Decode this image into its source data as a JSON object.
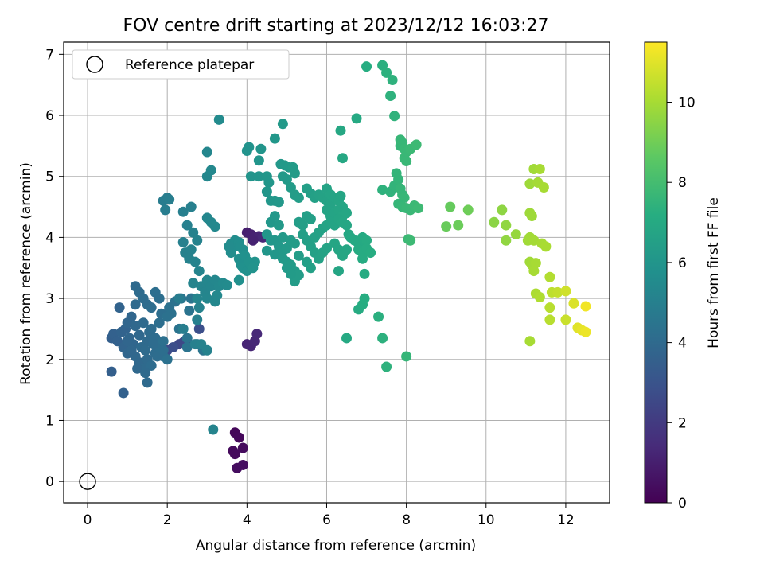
{
  "chart_data": {
    "type": "scatter",
    "title": "FOV centre drift starting at 2023/12/12 16:03:27",
    "xlabel": "Angular distance from reference (arcmin)",
    "ylabel": "Rotation from reference (arcmin)",
    "xlim": [
      -0.6,
      13.1
    ],
    "ylim": [
      -0.35,
      7.2
    ],
    "xticks": [
      0,
      2,
      4,
      6,
      8,
      10,
      12
    ],
    "yticks": [
      0,
      1,
      2,
      3,
      4,
      5,
      6,
      7
    ],
    "grid": true,
    "legend": {
      "position": "top-left",
      "entries": [
        "Reference platepar"
      ]
    },
    "reference_point": {
      "x": 0,
      "y": 0,
      "marker": "open-circle"
    },
    "colorbar": {
      "label": "Hours from first FF file",
      "range": [
        0,
        11.5
      ],
      "ticks": [
        0,
        2,
        4,
        6,
        8,
        10
      ],
      "colormap": "viridis"
    },
    "points": [
      [
        3.7,
        0.8,
        0.2
      ],
      [
        3.8,
        0.72,
        0.25
      ],
      [
        3.65,
        0.5,
        0.3
      ],
      [
        3.9,
        0.55,
        0.35
      ],
      [
        3.7,
        0.45,
        0.3
      ],
      [
        3.75,
        0.22,
        0.4
      ],
      [
        3.9,
        0.27,
        0.45
      ],
      [
        4.0,
        4.08,
        1.0
      ],
      [
        4.1,
        4.05,
        1.05
      ],
      [
        4.2,
        4.0,
        1.1
      ],
      [
        4.3,
        4.02,
        1.2
      ],
      [
        4.4,
        4.0,
        1.3
      ],
      [
        4.15,
        3.95,
        1.1
      ],
      [
        4.0,
        2.25,
        1.2
      ],
      [
        4.1,
        2.22,
        1.25
      ],
      [
        4.2,
        2.3,
        1.3
      ],
      [
        4.25,
        2.42,
        1.35
      ],
      [
        2.3,
        2.25,
        2.5
      ],
      [
        2.4,
        2.28,
        2.55
      ],
      [
        2.5,
        2.3,
        2.6
      ],
      [
        2.8,
        2.5,
        2.8
      ],
      [
        2.0,
        2.15,
        2.7
      ],
      [
        2.15,
        2.2,
        2.75
      ],
      [
        0.6,
        2.35,
        3.5
      ],
      [
        0.65,
        2.42,
        3.6
      ],
      [
        0.75,
        2.3,
        3.6
      ],
      [
        0.85,
        2.45,
        3.7
      ],
      [
        0.95,
        2.5,
        3.7
      ],
      [
        1.05,
        2.35,
        3.8
      ],
      [
        1.15,
        2.25,
        3.8
      ],
      [
        0.9,
        2.2,
        3.75
      ],
      [
        1.0,
        2.1,
        3.8
      ],
      [
        1.2,
        2.05,
        3.9
      ],
      [
        1.3,
        1.95,
        3.9
      ],
      [
        1.4,
        1.85,
        4.0
      ],
      [
        1.5,
        2.0,
        4.0
      ],
      [
        1.6,
        1.9,
        4.1
      ],
      [
        1.7,
        2.1,
        4.1
      ],
      [
        1.8,
        2.2,
        4.2
      ],
      [
        1.9,
        2.05,
        4.2
      ],
      [
        2.0,
        2.0,
        4.3
      ],
      [
        0.8,
        2.85,
        3.7
      ],
      [
        1.0,
        2.6,
        3.8
      ],
      [
        1.1,
        2.7,
        3.8
      ],
      [
        1.2,
        2.55,
        3.9
      ],
      [
        1.3,
        2.4,
        3.9
      ],
      [
        1.4,
        2.6,
        4.0
      ],
      [
        1.5,
        2.3,
        4.0
      ],
      [
        1.55,
        2.45,
        4.05
      ],
      [
        1.6,
        2.5,
        4.1
      ],
      [
        1.7,
        2.35,
        4.1
      ],
      [
        1.8,
        2.6,
        4.2
      ],
      [
        1.85,
        2.75,
        4.2
      ],
      [
        1.9,
        2.3,
        4.25
      ],
      [
        1.2,
        3.2,
        4.0
      ],
      [
        1.3,
        3.1,
        4.05
      ],
      [
        1.4,
        3.0,
        4.1
      ],
      [
        1.5,
        2.9,
        4.1
      ],
      [
        1.6,
        2.85,
        4.15
      ],
      [
        1.7,
        3.1,
        4.2
      ],
      [
        1.8,
        3.0,
        4.2
      ],
      [
        1.2,
        2.9,
        4.0
      ],
      [
        1.0,
        2.3,
        3.8
      ],
      [
        1.1,
        2.15,
        3.85
      ],
      [
        1.25,
        1.85,
        3.9
      ],
      [
        1.45,
        1.78,
        4.0
      ],
      [
        0.9,
        1.45,
        3.6
      ],
      [
        0.6,
        1.8,
        3.5
      ],
      [
        1.5,
        1.62,
        4.0
      ],
      [
        1.35,
        2.2,
        4.0
      ],
      [
        1.45,
        2.15,
        4.05
      ],
      [
        1.65,
        2.25,
        4.1
      ],
      [
        1.75,
        2.05,
        4.15
      ],
      [
        1.9,
        2.15,
        4.2
      ],
      [
        2.05,
        2.85,
        4.3
      ],
      [
        2.2,
        2.95,
        4.35
      ],
      [
        2.35,
        3.0,
        4.4
      ],
      [
        2.1,
        2.75,
        4.3
      ],
      [
        2.0,
        2.7,
        4.3
      ],
      [
        2.55,
        2.8,
        4.4
      ],
      [
        2.6,
        3.0,
        4.45
      ],
      [
        2.3,
        2.5,
        4.4
      ],
      [
        2.5,
        2.35,
        4.45
      ],
      [
        2.75,
        2.25,
        4.5
      ],
      [
        2.9,
        2.15,
        4.5
      ],
      [
        2.5,
        2.2,
        4.4
      ],
      [
        1.9,
        4.6,
        4.8
      ],
      [
        2.0,
        4.65,
        4.85
      ],
      [
        2.05,
        4.62,
        4.9
      ],
      [
        1.95,
        4.45,
        4.85
      ],
      [
        2.4,
        4.42,
        4.95
      ],
      [
        2.6,
        4.5,
        5.0
      ],
      [
        2.5,
        4.2,
        5.0
      ],
      [
        2.65,
        4.08,
        5.05
      ],
      [
        2.75,
        3.95,
        5.1
      ],
      [
        2.4,
        3.92,
        5.0
      ],
      [
        2.45,
        3.75,
        5.05
      ],
      [
        2.55,
        3.65,
        5.1
      ],
      [
        2.6,
        3.8,
        5.1
      ],
      [
        2.7,
        3.6,
        5.15
      ],
      [
        2.8,
        3.45,
        5.2
      ],
      [
        2.65,
        3.25,
        5.2
      ],
      [
        2.85,
        3.2,
        5.25
      ],
      [
        2.95,
        3.1,
        5.25
      ],
      [
        3.0,
        3.3,
        5.3
      ],
      [
        3.1,
        3.2,
        5.3
      ],
      [
        3.2,
        3.3,
        5.35
      ],
      [
        3.3,
        3.2,
        5.4
      ],
      [
        2.75,
        3.0,
        5.25
      ],
      [
        3.0,
        3.0,
        5.3
      ],
      [
        3.2,
        2.95,
        5.35
      ],
      [
        3.25,
        3.05,
        5.4
      ],
      [
        3.4,
        3.25,
        5.45
      ],
      [
        3.5,
        3.22,
        5.5
      ],
      [
        3.0,
        4.32,
        5.3
      ],
      [
        3.1,
        4.25,
        5.35
      ],
      [
        3.2,
        4.18,
        5.4
      ],
      [
        3.0,
        5.4,
        5.3
      ],
      [
        3.0,
        5.0,
        5.35
      ],
      [
        3.1,
        5.1,
        5.4
      ],
      [
        3.3,
        5.93,
        5.5
      ],
      [
        2.3,
        3.0,
        4.8
      ],
      [
        2.4,
        2.5,
        4.9
      ],
      [
        2.7,
        2.25,
        5.0
      ],
      [
        2.85,
        2.25,
        5.1
      ],
      [
        3.0,
        2.15,
        5.1
      ],
      [
        3.15,
        0.85,
        5.2
      ],
      [
        2.75,
        2.65,
        5.0
      ],
      [
        2.8,
        2.85,
        5.1
      ],
      [
        3.6,
        3.9,
        5.55
      ],
      [
        3.7,
        3.95,
        5.6
      ],
      [
        3.8,
        3.92,
        5.65
      ],
      [
        3.9,
        3.8,
        5.7
      ],
      [
        3.6,
        3.75,
        5.6
      ],
      [
        3.8,
        3.65,
        5.7
      ],
      [
        3.85,
        3.55,
        5.75
      ],
      [
        3.9,
        3.5,
        5.8
      ],
      [
        4.0,
        3.45,
        5.8
      ],
      [
        4.1,
        3.55,
        5.85
      ],
      [
        4.2,
        3.6,
        5.9
      ],
      [
        3.7,
        3.85,
        5.65
      ],
      [
        3.95,
        3.7,
        5.8
      ],
      [
        4.05,
        3.6,
        5.85
      ],
      [
        4.15,
        3.5,
        5.9
      ],
      [
        3.6,
        3.85,
        5.6
      ],
      [
        3.55,
        3.85,
        5.55
      ],
      [
        3.8,
        3.3,
        5.75
      ],
      [
        4.0,
        5.42,
        5.9
      ],
      [
        4.05,
        5.48,
        5.9
      ],
      [
        4.1,
        5.0,
        5.95
      ],
      [
        4.35,
        5.45,
        6.0
      ],
      [
        4.3,
        5.26,
        6.0
      ],
      [
        4.3,
        5.0,
        6.0
      ],
      [
        4.5,
        4.75,
        6.05
      ],
      [
        4.6,
        4.6,
        6.1
      ],
      [
        4.7,
        4.6,
        6.1
      ],
      [
        4.8,
        4.58,
        6.15
      ],
      [
        4.7,
        5.62,
        6.1
      ],
      [
        4.9,
        5.86,
        6.2
      ],
      [
        4.85,
        5.2,
        6.15
      ],
      [
        4.95,
        5.18,
        6.2
      ],
      [
        5.05,
        5.15,
        6.25
      ],
      [
        5.15,
        5.15,
        6.3
      ],
      [
        5.2,
        5.05,
        6.3
      ],
      [
        5.0,
        4.95,
        6.25
      ],
      [
        4.9,
        5.0,
        6.2
      ],
      [
        5.1,
        4.82,
        6.3
      ],
      [
        5.2,
        4.7,
        6.35
      ],
      [
        5.3,
        4.65,
        6.4
      ],
      [
        4.5,
        4.05,
        6.05
      ],
      [
        4.6,
        3.95,
        6.1
      ],
      [
        4.7,
        3.95,
        6.1
      ],
      [
        4.8,
        3.85,
        6.15
      ],
      [
        4.9,
        3.78,
        6.2
      ],
      [
        4.5,
        3.78,
        6.05
      ],
      [
        4.7,
        3.72,
        6.1
      ],
      [
        4.9,
        3.65,
        6.2
      ],
      [
        5.0,
        3.6,
        6.25
      ],
      [
        5.1,
        3.55,
        6.3
      ],
      [
        5.2,
        3.45,
        6.3
      ],
      [
        5.3,
        3.38,
        6.35
      ],
      [
        5.2,
        3.28,
        6.35
      ],
      [
        5.0,
        3.5,
        6.25
      ],
      [
        4.6,
        4.25,
        6.1
      ],
      [
        4.7,
        4.35,
        6.15
      ],
      [
        4.8,
        4.2,
        6.2
      ],
      [
        4.9,
        4.0,
        6.2
      ],
      [
        5.0,
        3.82,
        6.25
      ],
      [
        5.1,
        3.95,
        6.3
      ],
      [
        5.2,
        3.9,
        6.35
      ],
      [
        5.3,
        4.25,
        6.4
      ],
      [
        5.4,
        4.2,
        6.45
      ],
      [
        5.5,
        4.35,
        6.5
      ],
      [
        5.6,
        4.3,
        6.5
      ],
      [
        5.4,
        4.05,
        6.45
      ],
      [
        5.5,
        3.95,
        6.5
      ],
      [
        5.6,
        3.85,
        6.55
      ],
      [
        5.7,
        3.75,
        6.55
      ],
      [
        5.5,
        3.6,
        6.5
      ],
      [
        5.6,
        3.5,
        6.55
      ],
      [
        5.8,
        3.65,
        6.6
      ],
      [
        5.9,
        3.75,
        6.65
      ],
      [
        6.0,
        3.82,
        6.7
      ],
      [
        5.7,
        4.0,
        6.6
      ],
      [
        5.8,
        4.08,
        6.6
      ],
      [
        5.9,
        4.15,
        6.65
      ],
      [
        6.0,
        4.2,
        6.7
      ],
      [
        5.3,
        3.7,
        6.4
      ],
      [
        5.1,
        3.4,
        6.3
      ],
      [
        4.5,
        5.0,
        6.05
      ],
      [
        4.55,
        4.9,
        6.05
      ],
      [
        5.5,
        4.8,
        6.5
      ],
      [
        5.6,
        4.72,
        6.5
      ],
      [
        5.7,
        4.65,
        6.55
      ],
      [
        5.8,
        4.7,
        6.6
      ],
      [
        5.9,
        4.65,
        6.65
      ],
      [
        6.0,
        4.6,
        6.65
      ],
      [
        6.1,
        4.55,
        6.7
      ],
      [
        6.0,
        4.8,
        6.7
      ],
      [
        6.1,
        4.7,
        6.75
      ],
      [
        6.2,
        4.65,
        6.75
      ],
      [
        6.3,
        4.6,
        6.8
      ],
      [
        6.35,
        4.68,
        6.8
      ],
      [
        6.4,
        4.5,
        6.85
      ],
      [
        6.0,
        4.45,
        6.7
      ],
      [
        6.1,
        4.35,
        6.75
      ],
      [
        6.2,
        4.4,
        6.75
      ],
      [
        6.3,
        4.45,
        6.8
      ],
      [
        6.4,
        4.35,
        6.85
      ],
      [
        6.5,
        4.4,
        6.85
      ],
      [
        6.1,
        4.25,
        6.75
      ],
      [
        6.2,
        4.2,
        6.75
      ],
      [
        6.3,
        4.3,
        6.8
      ],
      [
        6.4,
        4.25,
        6.85
      ],
      [
        6.5,
        4.2,
        6.85
      ],
      [
        6.2,
        3.9,
        6.8
      ],
      [
        6.3,
        3.8,
        6.8
      ],
      [
        6.4,
        3.7,
        6.85
      ],
      [
        6.5,
        3.8,
        6.85
      ],
      [
        6.3,
        3.45,
        6.8
      ],
      [
        6.55,
        4.05,
        6.9
      ],
      [
        6.6,
        4.0,
        6.95
      ],
      [
        6.7,
        3.95,
        7.0
      ],
      [
        6.8,
        3.9,
        7.0
      ],
      [
        6.9,
        4.0,
        7.05
      ],
      [
        7.0,
        3.95,
        7.1
      ],
      [
        6.8,
        3.8,
        7.05
      ],
      [
        6.9,
        3.75,
        7.1
      ],
      [
        7.0,
        3.82,
        7.1
      ],
      [
        7.1,
        3.75,
        7.15
      ],
      [
        6.9,
        3.65,
        7.1
      ],
      [
        6.95,
        3.4,
        7.1
      ],
      [
        6.8,
        2.82,
        7.1
      ],
      [
        6.9,
        2.9,
        7.15
      ],
      [
        6.95,
        3.0,
        7.2
      ],
      [
        6.5,
        2.35,
        7.0
      ],
      [
        6.4,
        5.3,
        6.9
      ],
      [
        6.35,
        5.75,
        6.9
      ],
      [
        6.75,
        5.95,
        7.0
      ],
      [
        7.0,
        6.8,
        7.2
      ],
      [
        7.4,
        6.82,
        7.3
      ],
      [
        7.5,
        6.7,
        7.35
      ],
      [
        7.65,
        6.58,
        7.4
      ],
      [
        7.6,
        6.32,
        7.4
      ],
      [
        7.7,
        5.99,
        7.45
      ],
      [
        7.3,
        2.7,
        7.3
      ],
      [
        7.4,
        2.35,
        7.35
      ],
      [
        7.5,
        1.88,
        7.4
      ],
      [
        8.0,
        2.05,
        7.6
      ],
      [
        7.4,
        4.78,
        7.4
      ],
      [
        7.6,
        4.75,
        7.45
      ],
      [
        7.7,
        4.85,
        7.5
      ],
      [
        7.75,
        5.05,
        7.55
      ],
      [
        7.8,
        4.95,
        7.55
      ],
      [
        7.85,
        4.8,
        7.6
      ],
      [
        7.9,
        4.7,
        7.6
      ],
      [
        7.95,
        4.65,
        7.65
      ],
      [
        7.8,
        4.55,
        7.6
      ],
      [
        7.9,
        4.5,
        7.65
      ],
      [
        8.0,
        4.48,
        7.7
      ],
      [
        8.1,
        4.45,
        7.7
      ],
      [
        8.2,
        4.52,
        7.75
      ],
      [
        8.3,
        4.48,
        7.8
      ],
      [
        7.85,
        5.5,
        7.6
      ],
      [
        7.9,
        5.55,
        7.65
      ],
      [
        7.95,
        5.45,
        7.7
      ],
      [
        8.0,
        5.4,
        7.7
      ],
      [
        8.1,
        5.45,
        7.75
      ],
      [
        8.25,
        5.52,
        7.8
      ],
      [
        7.95,
        5.3,
        7.7
      ],
      [
        8.0,
        5.25,
        7.7
      ],
      [
        7.85,
        5.6,
        7.65
      ],
      [
        8.05,
        3.97,
        7.75
      ],
      [
        8.1,
        3.95,
        7.8
      ],
      [
        9.1,
        4.5,
        8.8
      ],
      [
        9.0,
        4.18,
        8.85
      ],
      [
        9.3,
        4.2,
        8.9
      ],
      [
        9.55,
        4.45,
        8.95
      ],
      [
        10.2,
        4.25,
        9.5
      ],
      [
        10.4,
        4.45,
        9.55
      ],
      [
        10.5,
        3.95,
        9.6
      ],
      [
        10.5,
        4.2,
        9.6
      ],
      [
        10.75,
        4.05,
        9.7
      ],
      [
        11.1,
        4.0,
        9.9
      ],
      [
        11.05,
        3.95,
        9.9
      ],
      [
        11.2,
        3.95,
        9.95
      ],
      [
        11.1,
        4.4,
        9.85
      ],
      [
        11.15,
        4.35,
        9.85
      ],
      [
        11.1,
        4.88,
        9.85
      ],
      [
        11.2,
        5.12,
        9.9
      ],
      [
        11.3,
        4.9,
        9.95
      ],
      [
        11.35,
        5.12,
        10.0
      ],
      [
        11.45,
        4.82,
        10.0
      ],
      [
        11.4,
        3.9,
        10.0
      ],
      [
        11.5,
        3.85,
        10.05
      ],
      [
        11.1,
        3.6,
        9.9
      ],
      [
        11.15,
        3.55,
        9.95
      ],
      [
        11.25,
        3.58,
        10.0
      ],
      [
        11.2,
        3.45,
        10.0
      ],
      [
        11.1,
        2.3,
        10.0
      ],
      [
        11.25,
        3.08,
        10.1
      ],
      [
        11.35,
        3.02,
        10.15
      ],
      [
        11.6,
        3.35,
        10.2
      ],
      [
        11.6,
        2.85,
        10.3
      ],
      [
        11.6,
        2.65,
        10.3
      ],
      [
        11.65,
        3.1,
        10.4
      ],
      [
        11.8,
        3.1,
        10.5
      ],
      [
        12.0,
        2.65,
        10.6
      ],
      [
        12.0,
        3.12,
        10.7
      ],
      [
        12.2,
        2.92,
        10.9
      ],
      [
        12.3,
        2.52,
        11.0
      ],
      [
        12.4,
        2.48,
        11.1
      ],
      [
        12.5,
        2.45,
        11.2
      ],
      [
        12.5,
        2.87,
        11.3
      ]
    ]
  }
}
